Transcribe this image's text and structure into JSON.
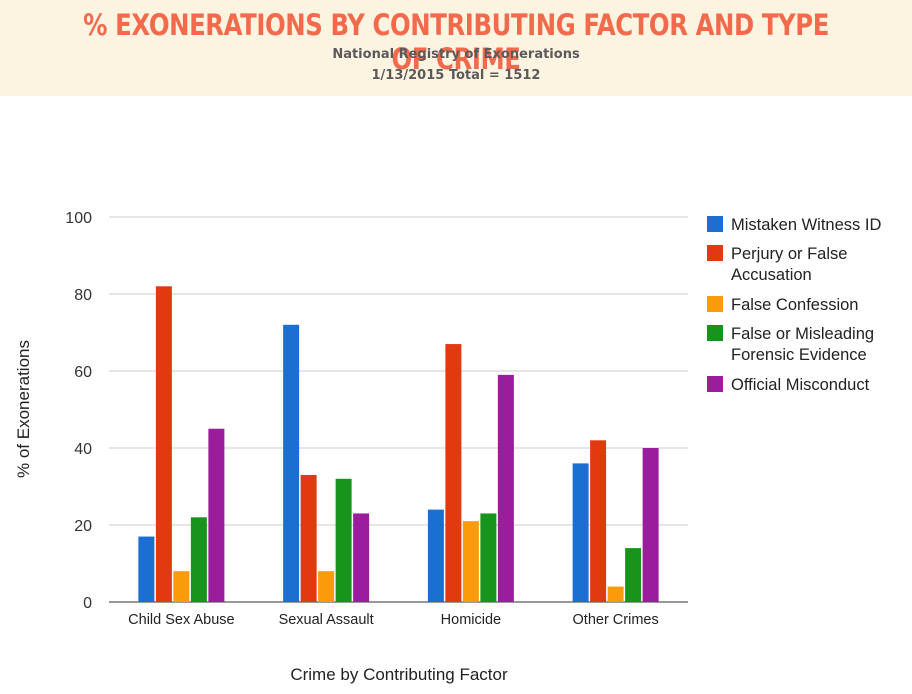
{
  "header": {
    "title": "% EXONERATIONS BY CONTRIBUTING FACTOR AND TYPE OF CRIME",
    "subtitle": "National Registry of Exonerations",
    "date_total": "1/13/2015 Total = 1512"
  },
  "colors": {
    "banner_bg": "#fdf3e1",
    "title": "#f26a4b"
  },
  "chart_data": {
    "type": "bar",
    "xlabel": "Crime by Contributing Factor",
    "ylabel": "% of Exonerations",
    "ylim": [
      0,
      100
    ],
    "yticks": [
      0,
      20,
      40,
      60,
      80,
      100
    ],
    "grid": true,
    "legend_position": "right",
    "categories": [
      "Child Sex Abuse",
      "Sexual Assault",
      "Homicide",
      "Other Crimes"
    ],
    "series": [
      {
        "name": "Mistaken Witness ID",
        "legend_lines": [
          "Mistaken Witness ID"
        ],
        "color": "#1a6fd1",
        "values": [
          17,
          72,
          24,
          36
        ]
      },
      {
        "name": "Perjury or False Accusation",
        "legend_lines": [
          "Perjury or False",
          "Accusation"
        ],
        "color": "#e23a10",
        "values": [
          82,
          33,
          67,
          42
        ]
      },
      {
        "name": "False Confession",
        "legend_lines": [
          "False Confession"
        ],
        "color": "#fb9b0a",
        "values": [
          8,
          8,
          21,
          4
        ]
      },
      {
        "name": "False or Misleading Forensic Evidence",
        "legend_lines": [
          "False or Misleading",
          "Forensic Evidence"
        ],
        "color": "#17941b",
        "values": [
          22,
          32,
          23,
          14
        ]
      },
      {
        "name": "Official Misconduct",
        "legend_lines": [
          "Official Misconduct"
        ],
        "color": "#9a1e9b",
        "values": [
          45,
          23,
          59,
          40
        ]
      }
    ]
  }
}
